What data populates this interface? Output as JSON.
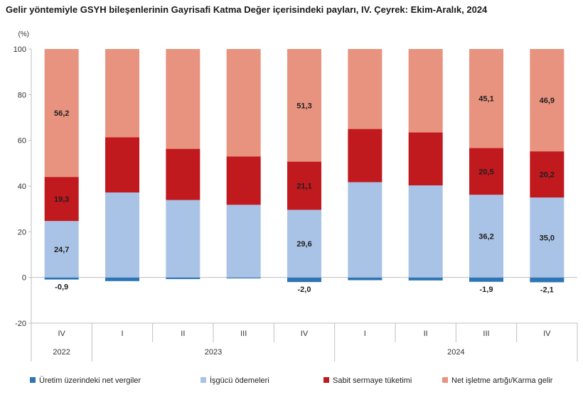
{
  "chart_data": {
    "type": "bar",
    "stacked": true,
    "title": "Gelir yöntemiyle GSYH bileşenlerinin Gayrisafi Katma Değer içerisindeki payları, IV. Çeyrek: Ekim-Aralık, 2024",
    "ylabel": "(%)",
    "ylim": [
      -20,
      100
    ],
    "yticks": [
      "100",
      "80",
      "60",
      "40",
      "20",
      "0",
      "-20"
    ],
    "ytick_values": [
      100,
      80,
      60,
      40,
      20,
      0,
      -20
    ],
    "grid": false,
    "legend_position": "bottom",
    "categories": [
      "IV",
      "I",
      "II",
      "III",
      "IV",
      "I",
      "II",
      "III",
      "IV"
    ],
    "years": [
      {
        "label": "2022",
        "start": 0,
        "count": 1
      },
      {
        "label": "2023",
        "start": 1,
        "count": 4
      },
      {
        "label": "2024",
        "start": 5,
        "count": 4
      }
    ],
    "series": [
      {
        "name": "Üretim üzerindeki net vergiler",
        "color": "#2e75b6",
        "values": [
          -0.9,
          -1.6,
          -0.7,
          -0.4,
          -2.0,
          -1.2,
          -1.3,
          -1.9,
          -2.1
        ]
      },
      {
        "name": "İşgücü ödemeleri",
        "color": "#a9c3e6",
        "values": [
          24.7,
          37.2,
          33.9,
          31.8,
          29.6,
          41.7,
          40.3,
          36.2,
          35.0
        ]
      },
      {
        "name": "Sabit sermaye tüketimi",
        "color": "#c0191e",
        "values": [
          19.3,
          24.2,
          22.4,
          21.2,
          21.1,
          23.3,
          23.2,
          20.5,
          20.2
        ]
      },
      {
        "name": "Net işletme artığı/Karma gelir",
        "color": "#e8937f",
        "values": [
          56.2,
          38.6,
          43.7,
          47.0,
          51.3,
          35.0,
          36.5,
          45.1,
          46.9
        ]
      }
    ],
    "data_labels": [
      [
        "-0,9",
        "",
        "",
        "",
        "-2,0",
        "",
        "",
        "-1,9",
        "-2,1"
      ],
      [
        "24,7",
        "",
        "",
        "",
        "29,6",
        "",
        "",
        "36,2",
        "35,0"
      ],
      [
        "19,3",
        "",
        "",
        "",
        "21,1",
        "",
        "",
        "20,5",
        "20,2"
      ],
      [
        "56,2",
        "",
        "",
        "",
        "51,3",
        "",
        "",
        "45,1",
        "46,9"
      ]
    ]
  }
}
